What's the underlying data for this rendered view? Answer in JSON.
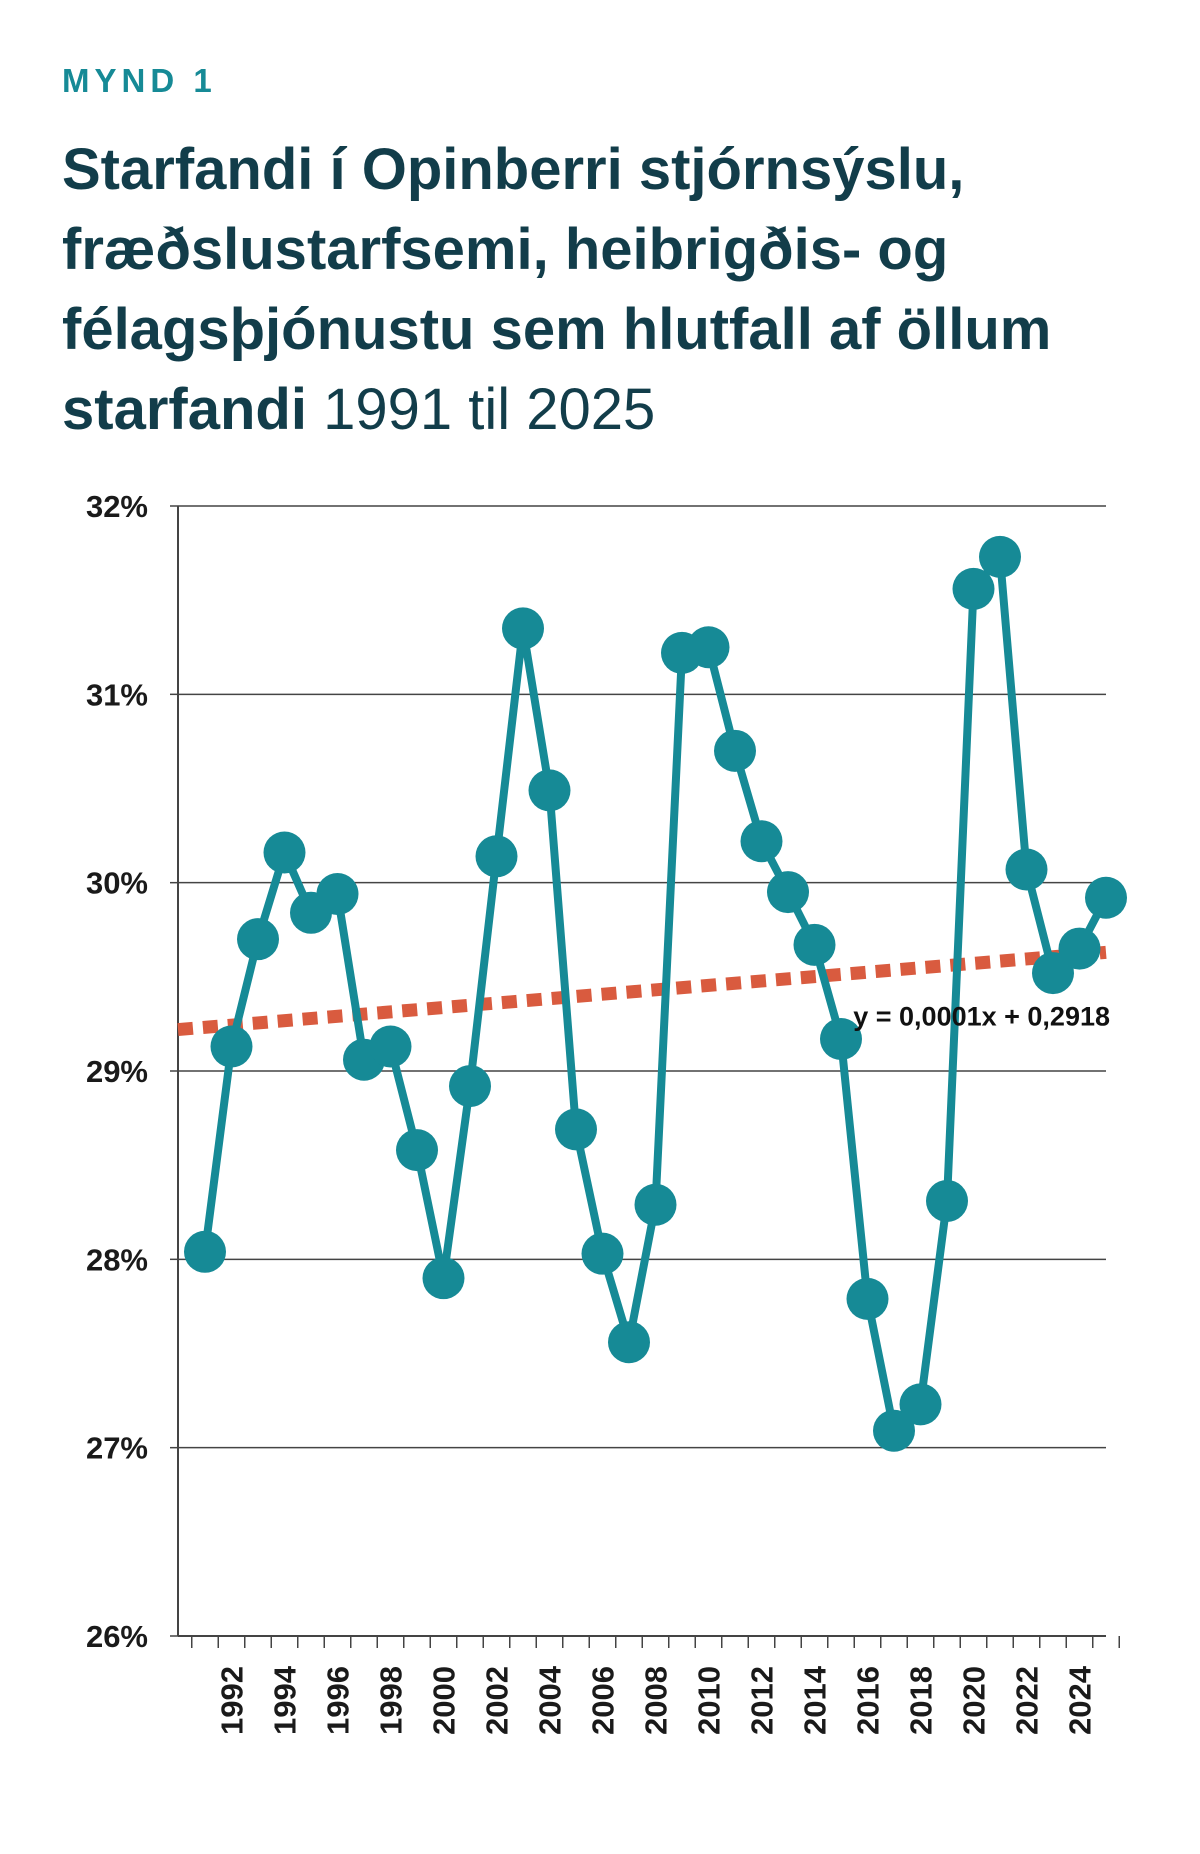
{
  "figure": {
    "kicker": "MYND 1",
    "title_bold": "Starfandi í Opinberri stjórnsýslu, fræðslustarfsemi, heibrigðis- og félagsþjónustu sem hlutfall af öllum starfandi",
    "title_light": "1991 til 2025"
  },
  "chart_data": {
    "type": "line",
    "title": "Starfandi í Opinberri stjórnsýslu, fræðslustarfsemi, heibrigðis- og félagsþjónustu sem hlutfall af öllum starfandi 1991 til 2025",
    "xlabel": "",
    "ylabel": "",
    "x": [
      1991,
      1992,
      1993,
      1994,
      1995,
      1996,
      1997,
      1998,
      1999,
      2000,
      2001,
      2002,
      2003,
      2004,
      2005,
      2006,
      2007,
      2008,
      2009,
      2010,
      2011,
      2012,
      2013,
      2014,
      2015,
      2016,
      2017,
      2018,
      2019,
      2020,
      2021,
      2022,
      2023,
      2024,
      2025
    ],
    "x_tick_labels": [
      "1992",
      "1994",
      "1996",
      "1998",
      "2000",
      "2002",
      "2004",
      "2006",
      "2008",
      "2010",
      "2012",
      "2014",
      "2016",
      "2018",
      "2020",
      "2022",
      "2024"
    ],
    "y_tick_labels": [
      "26%",
      "27%",
      "28%",
      "29%",
      "30%",
      "31%",
      "32%"
    ],
    "ylim": [
      0.26,
      0.32
    ],
    "grid": true,
    "series": [
      {
        "values": [
          0.2804,
          0.2913,
          0.297,
          0.3016,
          0.2984,
          0.2994,
          0.2906,
          0.2913,
          0.2858,
          0.279,
          0.2892,
          0.3014,
          0.3135,
          0.3049,
          0.2869,
          0.2803,
          0.2756,
          0.2829,
          0.3122,
          0.3125,
          0.307,
          0.3022,
          0.2995,
          0.2967,
          0.2917,
          0.2779,
          0.2709,
          0.2723,
          0.2831,
          0.3156,
          0.3173,
          0.3007,
          0.2952,
          0.2965,
          0.2992
        ],
        "color": "#168a96"
      }
    ],
    "trendline": {
      "label": "y = 0,0001x + 0,2918",
      "start": 0.2922,
      "end": 0.2963,
      "color": "#d95b3f",
      "style": "dotted"
    }
  }
}
